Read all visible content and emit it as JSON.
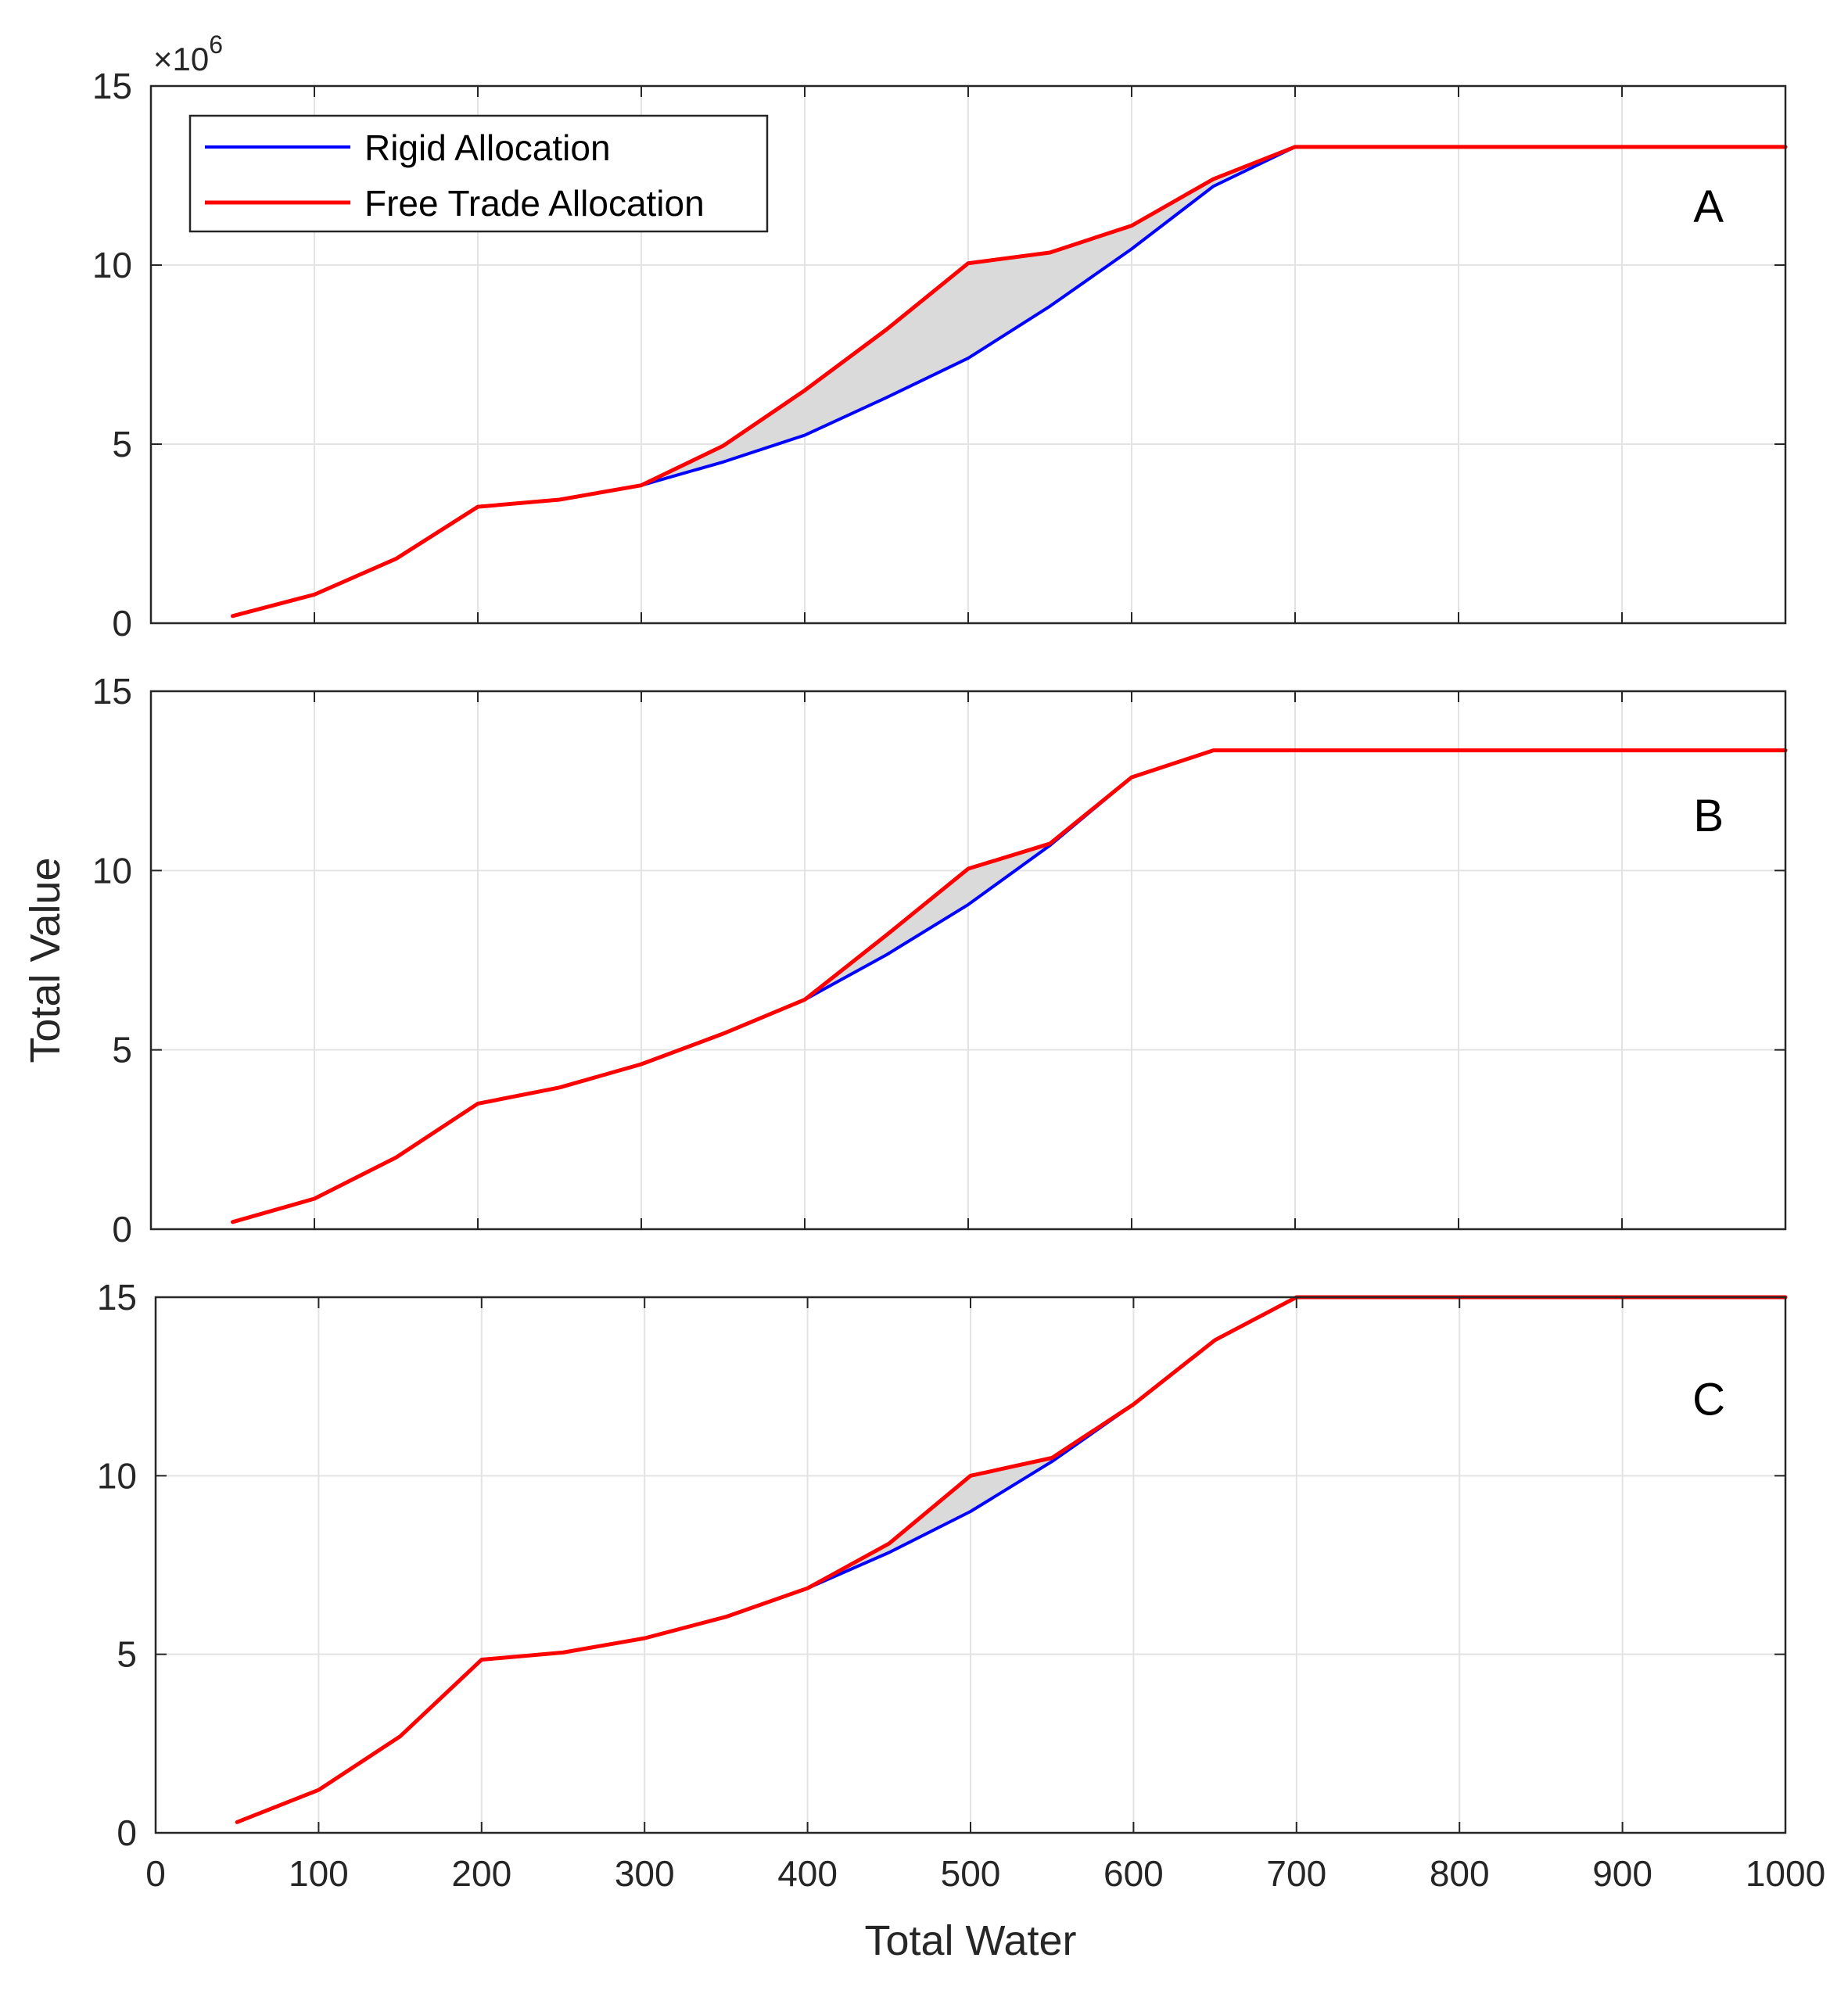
{
  "chart_data": {
    "type": "line",
    "ylabel": "Total Value",
    "xlabel": "Total Water",
    "y_exponent_label": "×10^6",
    "y_exponent_base": "×10",
    "y_exponent_power": "6",
    "xlim": [
      0,
      1000
    ],
    "ylim": [
      0,
      15
    ],
    "x_ticks": [
      0,
      100,
      200,
      300,
      400,
      500,
      600,
      700,
      800,
      900,
      1000
    ],
    "y_ticks": [
      0,
      5,
      10,
      15
    ],
    "legend": [
      "Rigid Allocation",
      "Free Trade Allocation"
    ],
    "colors": {
      "rigid": "#0000ff",
      "free": "#ff0000",
      "fill": "#dadada",
      "grid": "#e3e3e3"
    },
    "x": [
      50,
      100,
      150,
      200,
      250,
      300,
      350,
      400,
      450,
      500,
      550,
      600,
      650,
      700,
      750,
      800,
      850,
      900,
      950,
      1000
    ],
    "panels": [
      {
        "label": "A",
        "series": [
          {
            "name": "Rigid Allocation",
            "values": [
              0.2,
              0.8,
              1.8,
              3.25,
              3.45,
              3.85,
              4.5,
              5.25,
              6.3,
              7.4,
              8.85,
              10.45,
              12.2,
              13.3,
              13.3,
              13.3,
              13.3,
              13.3,
              13.3,
              13.3
            ]
          },
          {
            "name": "Free Trade Allocation",
            "values": [
              0.2,
              0.8,
              1.8,
              3.25,
              3.45,
              3.85,
              4.95,
              6.5,
              8.2,
              10.05,
              10.35,
              11.1,
              12.4,
              13.3,
              13.3,
              13.3,
              13.3,
              13.3,
              13.3,
              13.3
            ]
          }
        ]
      },
      {
        "label": "B",
        "series": [
          {
            "name": "Rigid Allocation",
            "values": [
              0.2,
              0.85,
              2.0,
              3.5,
              3.95,
              4.6,
              5.45,
              6.4,
              7.65,
              9.05,
              10.7,
              12.6,
              13.35,
              13.35,
              13.35,
              13.35,
              13.35,
              13.35,
              13.35,
              13.35
            ]
          },
          {
            "name": "Free Trade Allocation",
            "values": [
              0.2,
              0.85,
              2.0,
              3.5,
              3.95,
              4.6,
              5.45,
              6.4,
              8.2,
              10.05,
              10.75,
              12.6,
              13.35,
              13.35,
              13.35,
              13.35,
              13.35,
              13.35,
              13.35,
              13.35
            ]
          }
        ]
      },
      {
        "label": "C",
        "series": [
          {
            "name": "Rigid Allocation",
            "values": [
              0.3,
              1.2,
              2.7,
              4.85,
              5.05,
              5.45,
              6.05,
              6.85,
              7.85,
              9.0,
              10.4,
              12.0,
              13.8,
              15.0,
              15.0,
              15.0,
              15.0,
              15.0,
              15.0,
              15.0
            ]
          },
          {
            "name": "Free Trade Allocation",
            "values": [
              0.3,
              1.2,
              2.7,
              4.85,
              5.05,
              5.45,
              6.05,
              6.85,
              8.1,
              10.0,
              10.5,
              12.0,
              13.8,
              15.0,
              15.0,
              15.0,
              15.0,
              15.0,
              15.0,
              15.0
            ]
          }
        ]
      }
    ]
  }
}
